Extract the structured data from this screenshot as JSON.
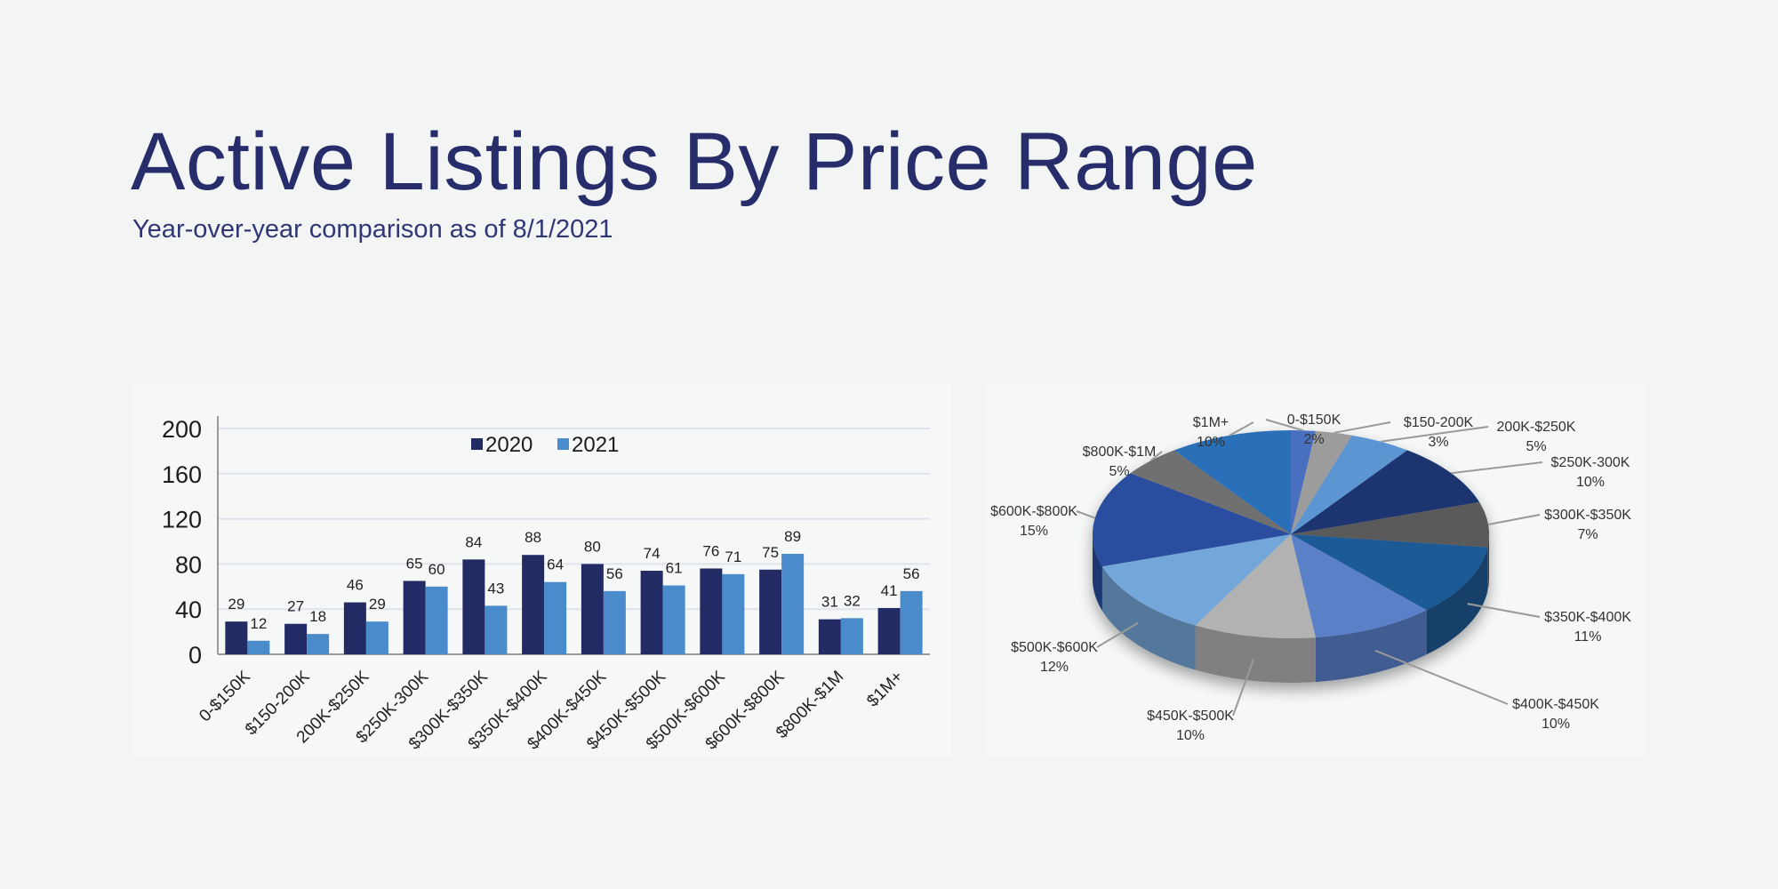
{
  "title": "Active Listings By Price Range",
  "subtitle": "Year-over-year comparison as of 8/1/2021",
  "chart_data": [
    {
      "type": "bar",
      "categories": [
        "0-$150K",
        "$150-200K",
        "200K-$250K",
        "$250K-300K",
        "$300K-$350K",
        "$350K-$400K",
        "$400K-$450K",
        "$450K-$500K",
        "$500K-$600K",
        "$600K-$800K",
        "$800K-$1M",
        "$1M+"
      ],
      "series": [
        {
          "name": "2020",
          "color": "#222b63",
          "values": [
            29,
            27,
            46,
            65,
            84,
            88,
            80,
            74,
            76,
            75,
            31,
            41
          ]
        },
        {
          "name": "2021",
          "color": "#4a8bcb",
          "values": [
            12,
            18,
            29,
            60,
            43,
            64,
            56,
            61,
            71,
            89,
            32,
            56
          ]
        }
      ],
      "yticks": [
        0,
        40,
        80,
        120,
        160,
        200
      ],
      "ylim": [
        0,
        200
      ],
      "grid": true,
      "legend": "top-center"
    },
    {
      "type": "pie",
      "style": "3d",
      "slices": [
        {
          "label": "0-$150K",
          "percent": 2,
          "color": "#4a6fc0"
        },
        {
          "label": "$150-200K",
          "percent": 3,
          "color": "#9c9c9c"
        },
        {
          "label": "200K-$250K",
          "percent": 5,
          "color": "#5b96d2"
        },
        {
          "label": "$250K-300K",
          "percent": 10,
          "color": "#1f3571"
        },
        {
          "label": "$300K-$350K",
          "percent": 7,
          "color": "#5a5a5a"
        },
        {
          "label": "$350K-$400K",
          "percent": 11,
          "color": "#1f5a95"
        },
        {
          "label": "$400K-$450K",
          "percent": 10,
          "color": "#5a80c8"
        },
        {
          "label": "$450K-$500K",
          "percent": 10,
          "color": "#b2b2b2"
        },
        {
          "label": "$500K-$600K",
          "percent": 12,
          "color": "#73a6d9"
        },
        {
          "label": "$600K-$800K",
          "percent": 15,
          "color": "#2a4e9f"
        },
        {
          "label": "$800K-$1M",
          "percent": 5,
          "color": "#6f6f6f"
        },
        {
          "label": "$1M+",
          "percent": 10,
          "color": "#2c6fb8"
        }
      ]
    }
  ]
}
